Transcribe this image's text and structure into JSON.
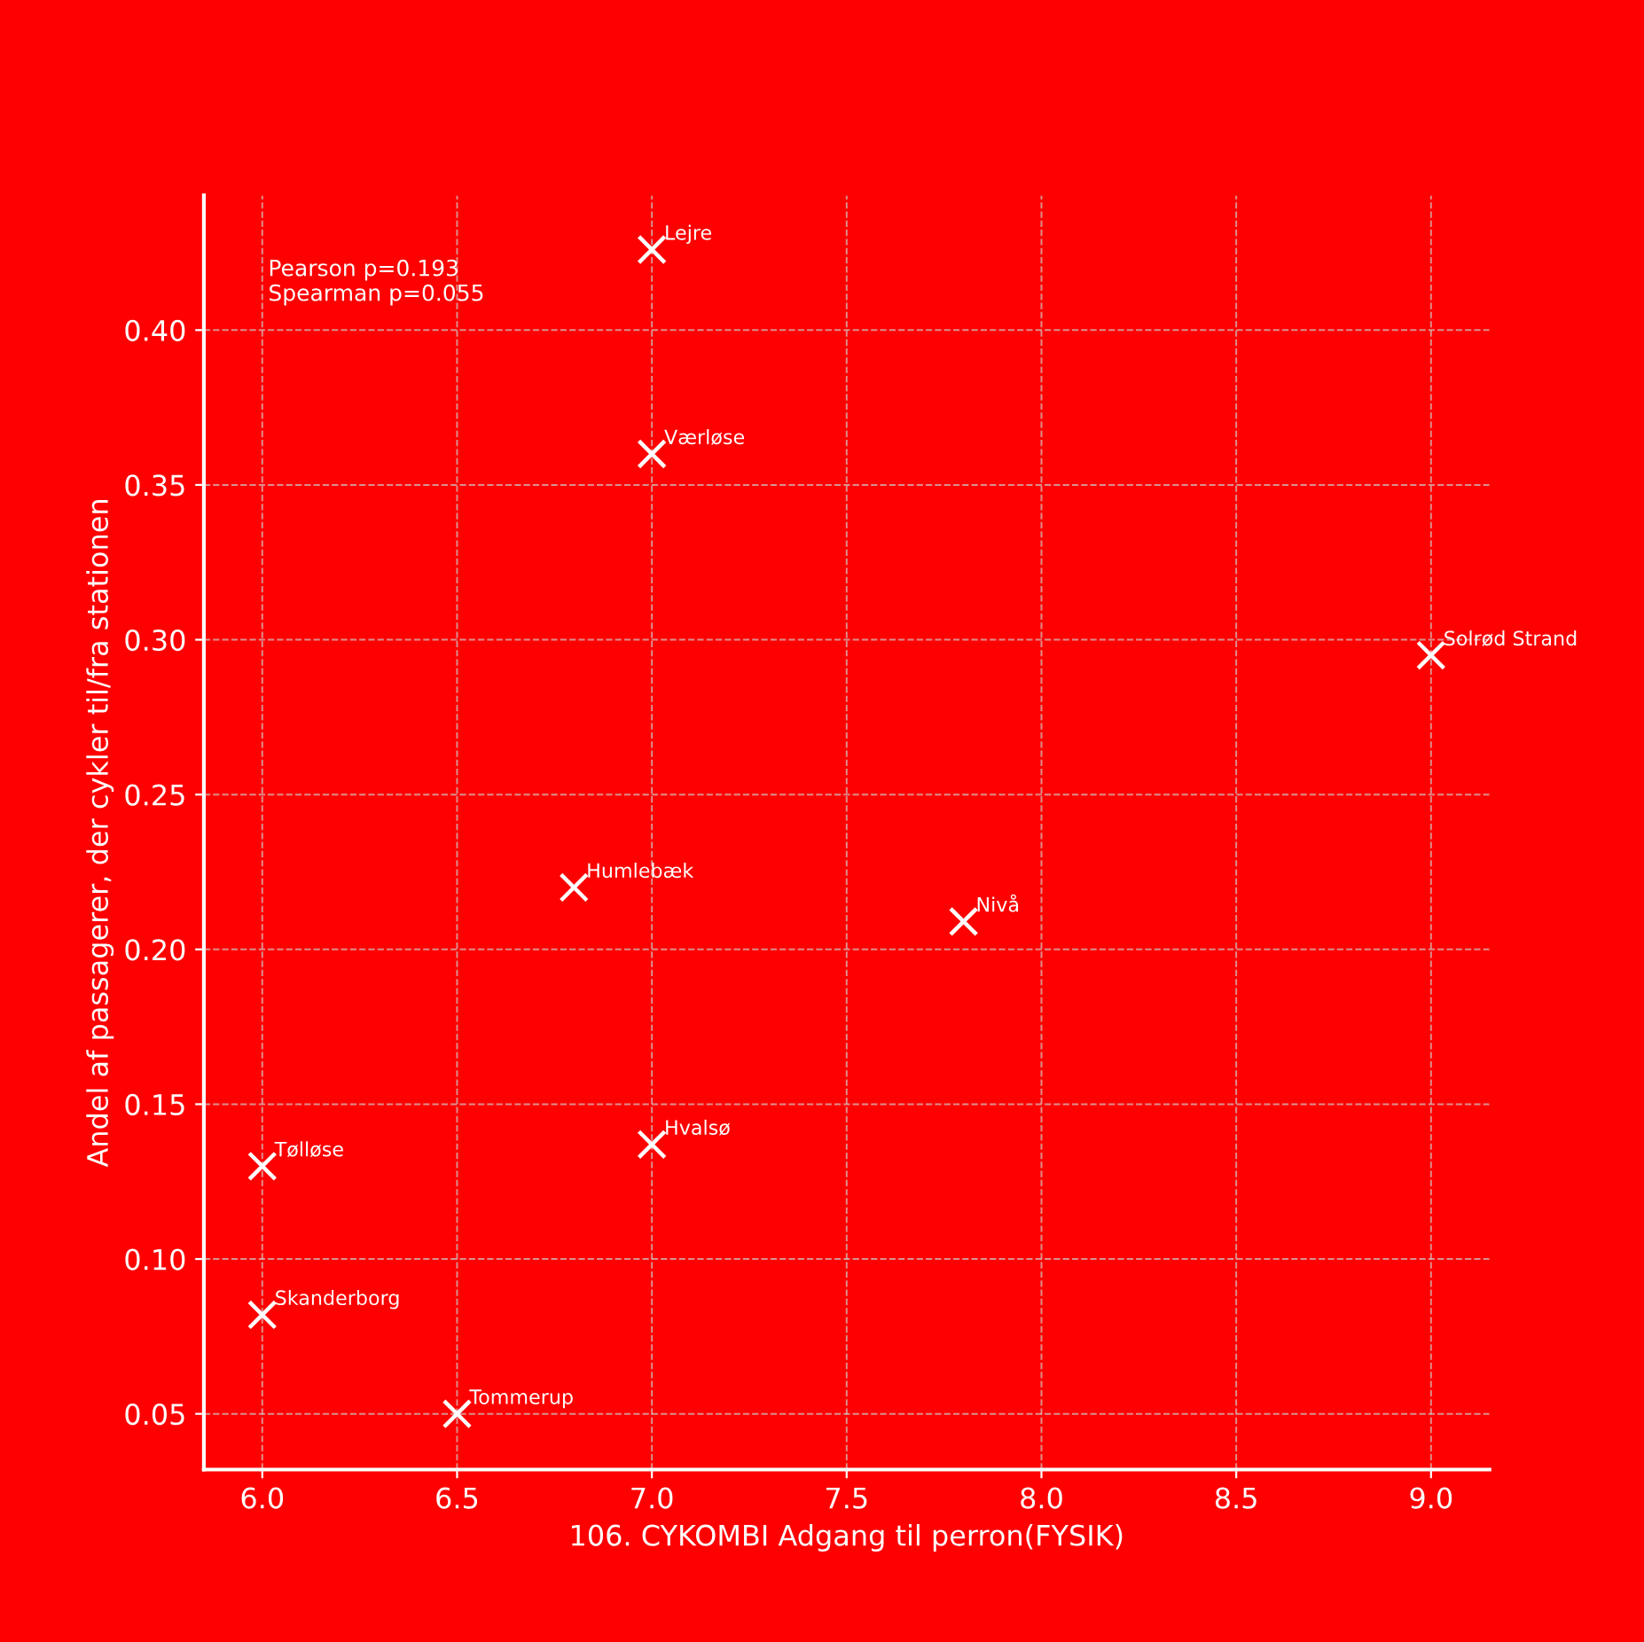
{
  "chart_data": {
    "type": "scatter",
    "xlabel": "106. CYKOMBI Adgang til perron(FYSIK)",
    "ylabel": "Andel af passagerer, der cykler til/fra stationen",
    "annotations": [
      "Pearson p=0.193\nSpearman p=0.055",
      {
        "text": "Lejre",
        "x": 7.0,
        "y": 0.426
      },
      {
        "text": "Værløse",
        "x": 7.0,
        "y": 0.36
      },
      {
        "text": "Solrød Strand",
        "x": 9.0,
        "y": 0.295
      },
      {
        "text": "Humlebæk",
        "x": 6.8,
        "y": 0.22
      },
      {
        "text": "Nivå",
        "x": 7.8,
        "y": 0.209
      },
      {
        "text": "Hvalsø",
        "x": 7.0,
        "y": 0.137
      },
      {
        "text": "Tølløse",
        "x": 6.0,
        "y": 0.13
      },
      {
        "text": "Skanderborg",
        "x": 6.0,
        "y": 0.082
      },
      {
        "text": "Tommerup",
        "x": 6.5,
        "y": 0.05
      }
    ],
    "x": [
      7.0,
      7.0,
      9.0,
      6.8,
      7.8,
      7.0,
      6.0,
      6.0,
      6.5
    ],
    "series": [
      {
        "color": "#ffffff",
        "values": [
          0.426,
          0.36,
          0.295,
          0.22,
          0.209,
          0.137,
          0.13,
          0.082,
          0.05
        ]
      }
    ],
    "marker": "cross",
    "xlim": [
      5.85,
      9.15
    ],
    "ylim": [
      0.032,
      0.4435
    ],
    "xticks": [
      {
        "value": 6.0,
        "label": "6.0"
      },
      {
        "value": 6.5,
        "label": "6.5"
      },
      {
        "value": 7.0,
        "label": "7.0"
      },
      {
        "value": 7.5,
        "label": "7.5"
      },
      {
        "value": 8.0,
        "label": "8.0"
      },
      {
        "value": 8.5,
        "label": "8.5"
      },
      {
        "value": 9.0,
        "label": "9.0"
      }
    ],
    "yticks": [
      {
        "value": 0.05,
        "label": "0.05"
      },
      {
        "value": 0.1,
        "label": "0.10"
      },
      {
        "value": 0.15,
        "label": "0.15"
      },
      {
        "value": 0.2,
        "label": "0.20"
      },
      {
        "value": 0.25,
        "label": "0.25"
      },
      {
        "value": 0.3,
        "label": "0.30"
      },
      {
        "value": 0.35,
        "label": "0.35"
      },
      {
        "value": 0.4,
        "label": "0.40"
      }
    ],
    "grid": true
  }
}
